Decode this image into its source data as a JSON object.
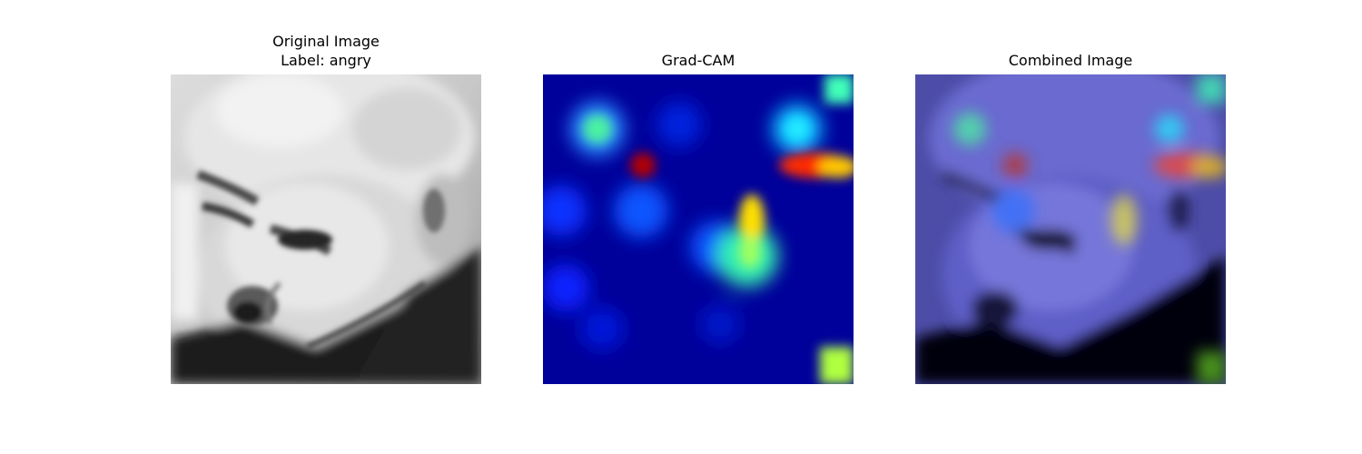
{
  "figure": {
    "panels": [
      {
        "title_line1": "Original Image",
        "title_line2": "Label: angry",
        "kind": "grayscale-photo"
      },
      {
        "title": "Grad-CAM",
        "kind": "heatmap",
        "colormap": "jet"
      },
      {
        "title": "Combined Image",
        "kind": "overlay"
      }
    ]
  }
}
